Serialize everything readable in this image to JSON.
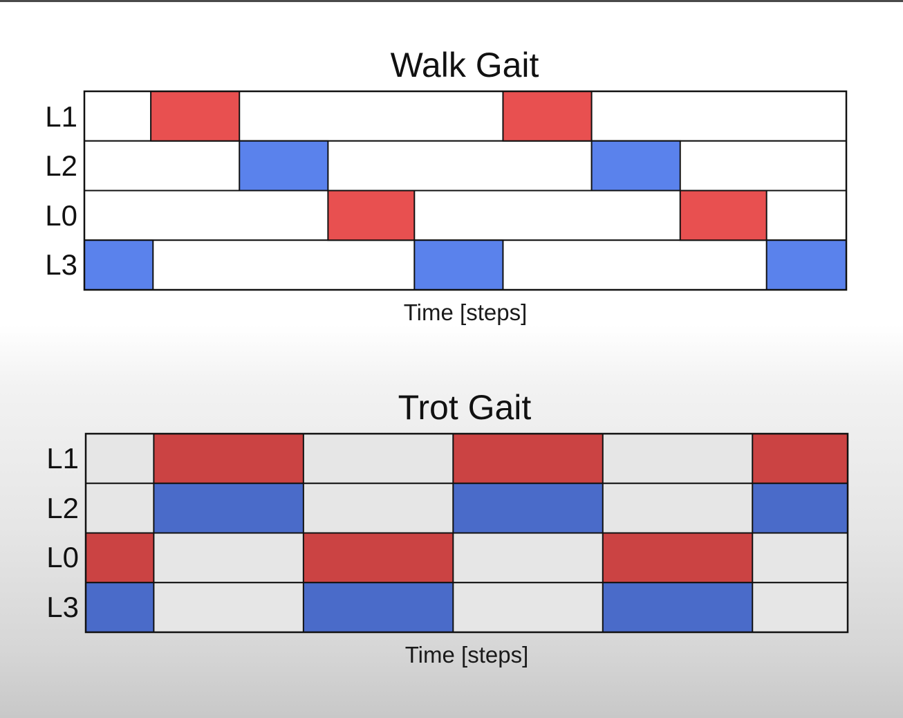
{
  "chart_data": [
    {
      "type": "gantt",
      "title": "Walk Gait",
      "xlabel": "Time [steps]",
      "xlim": [
        0,
        17.2
      ],
      "rows": [
        "L1",
        "L2",
        "L0",
        "L3"
      ],
      "background": "#ffffff",
      "colors": {
        "red": "#e85050",
        "blue": "#5a82ec"
      },
      "segments": [
        {
          "row": "L1",
          "start": 1.5,
          "end": 3.5,
          "color": "red"
        },
        {
          "row": "L1",
          "start": 9.45,
          "end": 11.45,
          "color": "red"
        },
        {
          "row": "L2",
          "start": 3.5,
          "end": 5.5,
          "color": "blue"
        },
        {
          "row": "L2",
          "start": 11.45,
          "end": 13.45,
          "color": "blue"
        },
        {
          "row": "L0",
          "start": 5.5,
          "end": 7.45,
          "color": "red"
        },
        {
          "row": "L0",
          "start": 13.45,
          "end": 15.4,
          "color": "red"
        },
        {
          "row": "L3",
          "start": 0,
          "end": 1.55,
          "color": "blue"
        },
        {
          "row": "L3",
          "start": 7.45,
          "end": 9.45,
          "color": "blue"
        },
        {
          "row": "L3",
          "start": 15.4,
          "end": 17.2,
          "color": "blue"
        }
      ]
    },
    {
      "type": "gantt",
      "title": "Trot Gait",
      "xlabel": "Time [steps]",
      "xlim": [
        0,
        11.2
      ],
      "rows": [
        "L1",
        "L2",
        "L0",
        "L3"
      ],
      "background": "#e6e6e6",
      "colors": {
        "red": "#cb4343",
        "blue": "#4a6bc9"
      },
      "segments": [
        {
          "row": "L1",
          "start": 1,
          "end": 3.2,
          "color": "red"
        },
        {
          "row": "L1",
          "start": 5.4,
          "end": 7.6,
          "color": "red"
        },
        {
          "row": "L1",
          "start": 9.8,
          "end": 11.2,
          "color": "red"
        },
        {
          "row": "L2",
          "start": 1,
          "end": 3.2,
          "color": "blue"
        },
        {
          "row": "L2",
          "start": 5.4,
          "end": 7.6,
          "color": "blue"
        },
        {
          "row": "L2",
          "start": 9.8,
          "end": 11.2,
          "color": "blue"
        },
        {
          "row": "L0",
          "start": 0,
          "end": 1,
          "color": "red"
        },
        {
          "row": "L0",
          "start": 3.2,
          "end": 5.4,
          "color": "red"
        },
        {
          "row": "L0",
          "start": 7.6,
          "end": 9.8,
          "color": "red"
        },
        {
          "row": "L3",
          "start": 0,
          "end": 1,
          "color": "blue"
        },
        {
          "row": "L3",
          "start": 3.2,
          "end": 5.4,
          "color": "blue"
        },
        {
          "row": "L3",
          "start": 7.6,
          "end": 9.8,
          "color": "blue"
        }
      ]
    }
  ]
}
